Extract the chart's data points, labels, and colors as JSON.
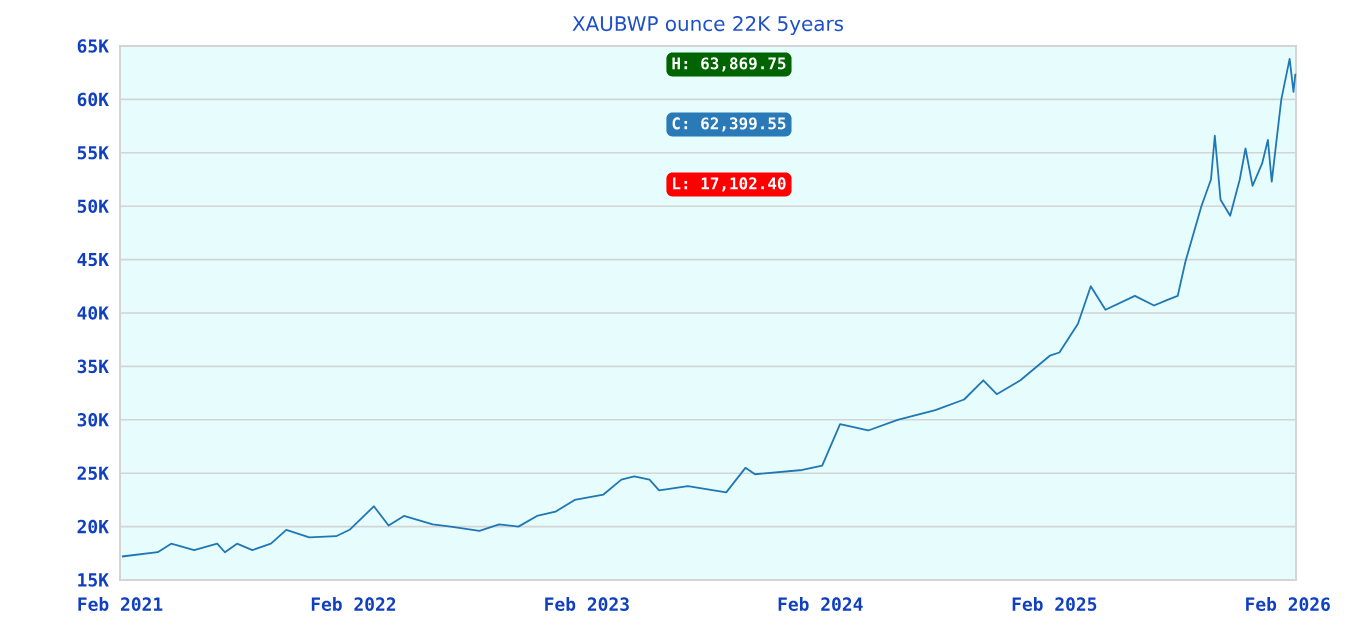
{
  "chart_data": {
    "type": "line",
    "title": "XAUBWP ounce 22K 5years",
    "x": [
      "2021-02-04",
      "2021-04-01",
      "2021-04-22",
      "2021-05-28",
      "2021-07-03",
      "2021-07-15",
      "2021-08-03",
      "2021-08-27",
      "2021-09-25",
      "2021-10-19",
      "2021-11-24",
      "2022-01-05",
      "2022-01-26",
      "2022-03-05",
      "2022-03-28",
      "2022-04-21",
      "2022-06-05",
      "2022-07-03",
      "2022-08-17",
      "2022-09-17",
      "2022-10-17",
      "2022-11-15",
      "2022-12-14",
      "2023-01-13",
      "2023-02-27",
      "2023-03-27",
      "2023-04-16",
      "2023-05-10",
      "2023-05-25",
      "2023-07-09",
      "2023-09-07",
      "2023-10-07",
      "2023-10-22",
      "2024-01-04",
      "2024-02-04",
      "2024-03-03",
      "2024-04-16",
      "2024-06-01",
      "2024-07-30",
      "2024-09-13",
      "2024-10-13",
      "2024-11-03",
      "2024-12-10",
      "2025-01-25",
      "2025-02-09",
      "2025-03-10",
      "2025-03-30",
      "2025-04-22",
      "2025-06-07",
      "2025-07-07",
      "2025-07-27",
      "2025-08-13",
      "2025-08-25",
      "2025-09-19",
      "2025-10-04",
      "2025-10-10",
      "2025-10-19",
      "2025-11-03",
      "2025-11-18",
      "2025-11-27",
      "2025-12-08",
      "2025-12-23",
      "2026-01-01",
      "2026-01-07",
      "2026-01-22",
      "2026-02-04",
      "2026-02-10",
      "2026-02-13"
    ],
    "series": [
      {
        "color": "#1f77b4",
        "values": [
          17200,
          17600,
          18400,
          17800,
          18400,
          17600,
          18400,
          17800,
          18400,
          19700,
          19000,
          19100,
          19700,
          21900,
          20100,
          21000,
          20200,
          20000,
          19600,
          20200,
          20000,
          21000,
          21400,
          22500,
          23000,
          24400,
          24700,
          24400,
          23400,
          23800,
          23200,
          25500,
          24900,
          25300,
          25700,
          29600,
          29000,
          30000,
          30900,
          31900,
          33700,
          32400,
          33700,
          36000,
          36300,
          39000,
          42500,
          40300,
          41600,
          40700,
          41200,
          41600,
          44800,
          50000,
          52500,
          56600,
          50600,
          49100,
          52500,
          55400,
          51900,
          54000,
          56200,
          52300,
          60000,
          63800,
          60700,
          62400
        ]
      }
    ],
    "xlim": [
      "2021-02-01",
      "2026-02-14"
    ],
    "xticks": [
      {
        "value": "2021-02-01",
        "label": "Feb 2021"
      },
      {
        "value": "2022-02-01",
        "label": "Feb 2022"
      },
      {
        "value": "2023-02-01",
        "label": "Feb 2023"
      },
      {
        "value": "2024-02-01",
        "label": "Feb 2024"
      },
      {
        "value": "2025-02-01",
        "label": "Feb 2025"
      },
      {
        "value": "2026-02-01",
        "label": "Feb 2026"
      }
    ],
    "ylim": [
      15000,
      65000
    ],
    "yticks": [
      {
        "value": 15000,
        "label": "15K"
      },
      {
        "value": 20000,
        "label": "20K"
      },
      {
        "value": 25000,
        "label": "25K"
      },
      {
        "value": 30000,
        "label": "30K"
      },
      {
        "value": 35000,
        "label": "35K"
      },
      {
        "value": 40000,
        "label": "40K"
      },
      {
        "value": 45000,
        "label": "45K"
      },
      {
        "value": 50000,
        "label": "50K"
      },
      {
        "value": 55000,
        "label": "55K"
      },
      {
        "value": 60000,
        "label": "60K"
      },
      {
        "value": 65000,
        "label": "65K"
      }
    ],
    "grid": "y",
    "annotations": [
      "H: 63,869.75",
      "C: 62,399.55",
      "L: 17,102.40"
    ]
  }
}
